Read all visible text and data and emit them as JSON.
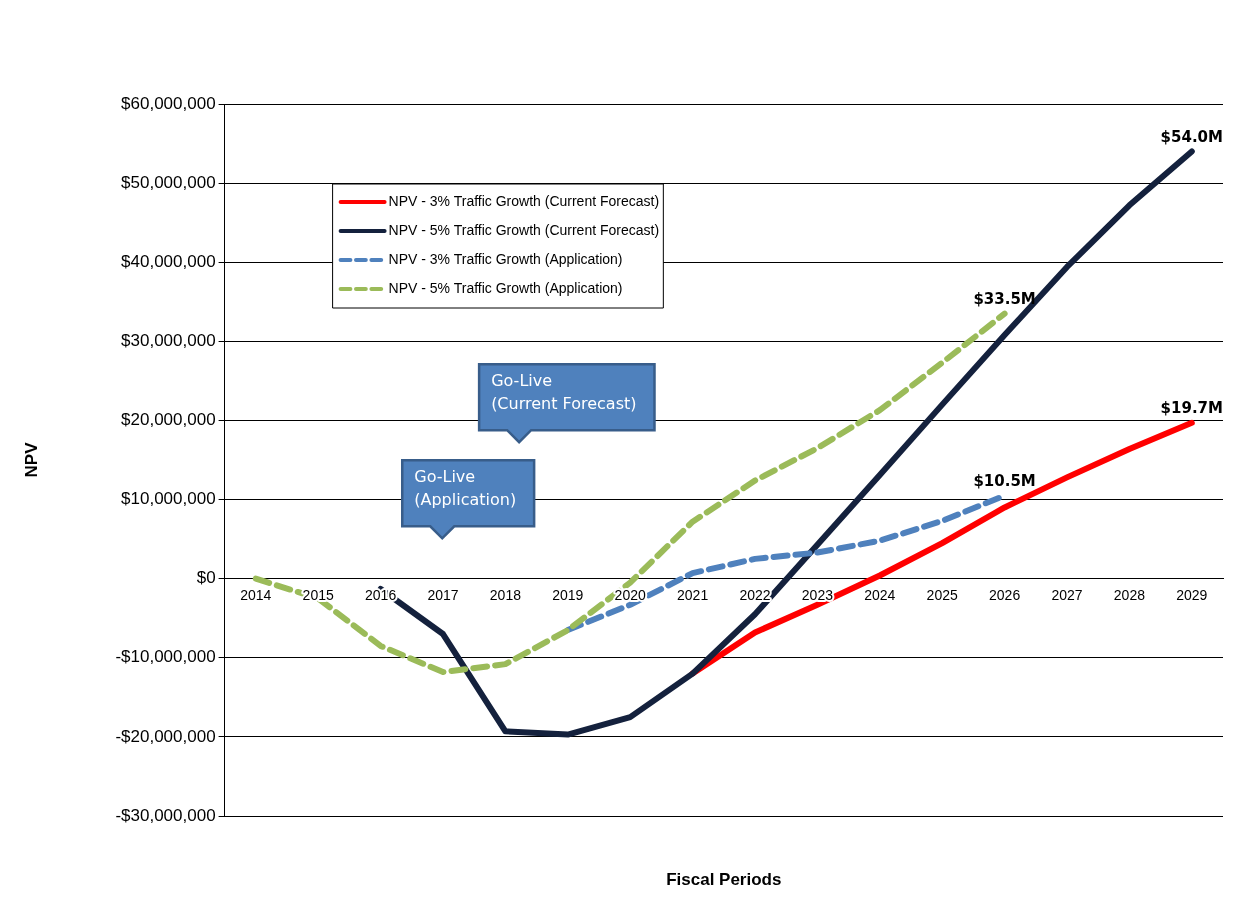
{
  "chart_data": {
    "type": "line",
    "xlabel": "Fiscal Periods",
    "ylabel": "NPV",
    "categories": [
      "2014",
      "2015",
      "2016",
      "2017",
      "2018",
      "2019",
      "2020",
      "2021",
      "2022",
      "2023",
      "2024",
      "2025",
      "2026",
      "2027",
      "2028",
      "2029"
    ],
    "series": [
      {
        "name": "NPV - 3% Traffic Growth (Current Forecast)",
        "color": "#ff0000",
        "line_style": "solid",
        "values": [
          null,
          null,
          null,
          null,
          null,
          null,
          null,
          -12000000,
          -6800000,
          -3300000,
          400000,
          4500000,
          9000000,
          12800000,
          16400000,
          19700000
        ],
        "value_labels": [
          null,
          null,
          null,
          null,
          null,
          null,
          null,
          null,
          null,
          null,
          null,
          null,
          null,
          null,
          null,
          "$19.7M"
        ]
      },
      {
        "name": "NPV - 5% Traffic Growth (Current Forecast)",
        "color": "#14213d",
        "line_style": "solid",
        "values": [
          null,
          null,
          -1300000,
          -7000000,
          -19300000,
          -19700000,
          -17500000,
          -12000000,
          -4500000,
          4300000,
          13100000,
          22000000,
          30800000,
          39400000,
          47200000,
          54000000
        ],
        "value_labels": [
          null,
          null,
          null,
          null,
          null,
          null,
          null,
          null,
          null,
          null,
          null,
          null,
          null,
          null,
          null,
          "$54.0M"
        ]
      },
      {
        "name": "NPV - 3% Traffic Growth (Application)",
        "color": "#4f81bd",
        "line_style": "dashed",
        "values": [
          null,
          null,
          null,
          null,
          null,
          -6500000,
          -3300000,
          700000,
          2500000,
          3300000,
          4800000,
          7300000,
          10500000,
          null,
          null,
          null
        ],
        "value_labels": [
          null,
          null,
          null,
          null,
          null,
          null,
          null,
          null,
          null,
          null,
          null,
          null,
          "$10.5M",
          null,
          null,
          null
        ]
      },
      {
        "name": "NPV - 5% Traffic Growth (Application)",
        "color": "#9bbb59",
        "line_style": "dashed",
        "values": [
          0,
          -2500000,
          -8500000,
          -11800000,
          -10800000,
          -6500000,
          -500000,
          7200000,
          12400000,
          16500000,
          21300000,
          27300000,
          33500000,
          null,
          null,
          null
        ],
        "value_labels": [
          null,
          null,
          null,
          null,
          null,
          null,
          null,
          null,
          null,
          null,
          null,
          null,
          "$33.5M",
          null,
          null,
          null
        ]
      }
    ],
    "ylim": [
      -30000000,
      60000000
    ],
    "yticks": [
      {
        "value": -30000000,
        "label": "-$30,000,000"
      },
      {
        "value": -20000000,
        "label": "-$20,000,000"
      },
      {
        "value": -10000000,
        "label": "-$10,000,000"
      },
      {
        "value": 0,
        "label": "$0"
      },
      {
        "value": 10000000,
        "label": "$10,000,000"
      },
      {
        "value": 20000000,
        "label": "$20,000,000"
      },
      {
        "value": 30000000,
        "label": "$30,000,000"
      },
      {
        "value": 40000000,
        "label": "$40,000,000"
      },
      {
        "value": 50000000,
        "label": "$50,000,000"
      },
      {
        "value": 60000000,
        "label": "$60,000,000"
      }
    ],
    "grid": "y",
    "legend": "top left",
    "marker": "none",
    "annotations": [
      "Go-Live\n(Current Forecast)",
      "Go-Live\n(Application)"
    ]
  }
}
